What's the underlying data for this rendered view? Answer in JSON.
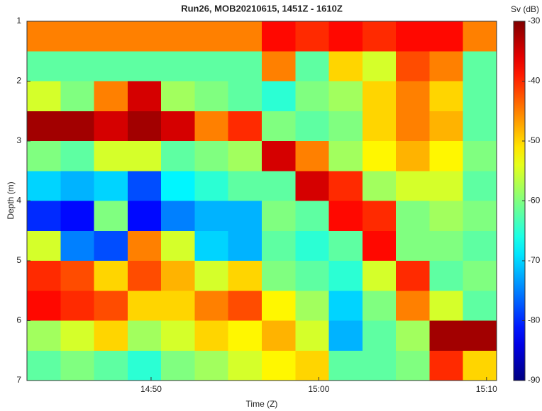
{
  "chart_data": {
    "type": "heatmap",
    "title": "Run26, MOB20210615, 1451Z - 1610Z",
    "x_label": "Time (Z)",
    "y_label": "Depth (m)",
    "colorbar_label": "Sv (dB)",
    "colormap": "jet",
    "y_reversed": true,
    "xlim": [
      882.6,
      910.6
    ],
    "xticks": [
      {
        "value": 890,
        "label": "14:50"
      },
      {
        "value": 900,
        "label": "15:00"
      },
      {
        "value": 910,
        "label": "15:10"
      }
    ],
    "ylim": [
      1,
      7
    ],
    "yticks": [
      1,
      2,
      3,
      4,
      5,
      6,
      7
    ],
    "clim": [
      -90,
      -30
    ],
    "cticks": [
      -30,
      -40,
      -50,
      -60,
      -70,
      -80,
      -90
    ],
    "x_edges": [
      882.6,
      884.6,
      886.6,
      888.6,
      890.6,
      892.6,
      894.6,
      896.6,
      898.6,
      900.6,
      902.6,
      904.6,
      906.6,
      908.6,
      910.6
    ],
    "y_edges": [
      1,
      1.5,
      2,
      2.5,
      3,
      3.5,
      4,
      4.5,
      5,
      5.5,
      6,
      6.5,
      7
    ],
    "values": [
      [
        -45,
        -45,
        -45,
        -45,
        -45,
        -45,
        -45,
        -38,
        -40,
        -38,
        -40,
        -38,
        -38,
        -45
      ],
      [
        -62,
        -62,
        -62,
        -62,
        -62,
        -62,
        -62,
        -45,
        -62,
        -50,
        -55,
        -42,
        -45,
        -62
      ],
      [
        -55,
        -60,
        -45,
        -35,
        -58,
        -60,
        -62,
        -65,
        -60,
        -58,
        -50,
        -45,
        -50,
        -62
      ],
      [
        -32,
        -32,
        -35,
        -32,
        -35,
        -45,
        -40,
        -60,
        -62,
        -60,
        -50,
        -45,
        -48,
        -62
      ],
      [
        -60,
        -62,
        -55,
        -55,
        -62,
        -60,
        -58,
        -35,
        -45,
        -58,
        -52,
        -48,
        -52,
        -60
      ],
      [
        -70,
        -72,
        -70,
        -78,
        -68,
        -65,
        -62,
        -62,
        -35,
        -40,
        -58,
        -55,
        -55,
        -62
      ],
      [
        -80,
        -82,
        -60,
        -82,
        -75,
        -72,
        -72,
        -60,
        -62,
        -38,
        -40,
        -60,
        -58,
        -60
      ],
      [
        -55,
        -75,
        -78,
        -45,
        -55,
        -70,
        -72,
        -62,
        -65,
        -62,
        -38,
        -60,
        -60,
        -62
      ],
      [
        -40,
        -42,
        -50,
        -42,
        -48,
        -55,
        -50,
        -60,
        -62,
        -65,
        -55,
        -40,
        -62,
        -60
      ],
      [
        -38,
        -40,
        -42,
        -50,
        -50,
        -45,
        -42,
        -52,
        -58,
        -70,
        -60,
        -45,
        -55,
        -62
      ],
      [
        -58,
        -55,
        -50,
        -58,
        -55,
        -50,
        -52,
        -48,
        -55,
        -72,
        -62,
        -58,
        -32,
        -32
      ],
      [
        -62,
        -60,
        -62,
        -65,
        -60,
        -58,
        -55,
        -52,
        -50,
        -62,
        -62,
        -60,
        -40,
        -50
      ]
    ]
  }
}
